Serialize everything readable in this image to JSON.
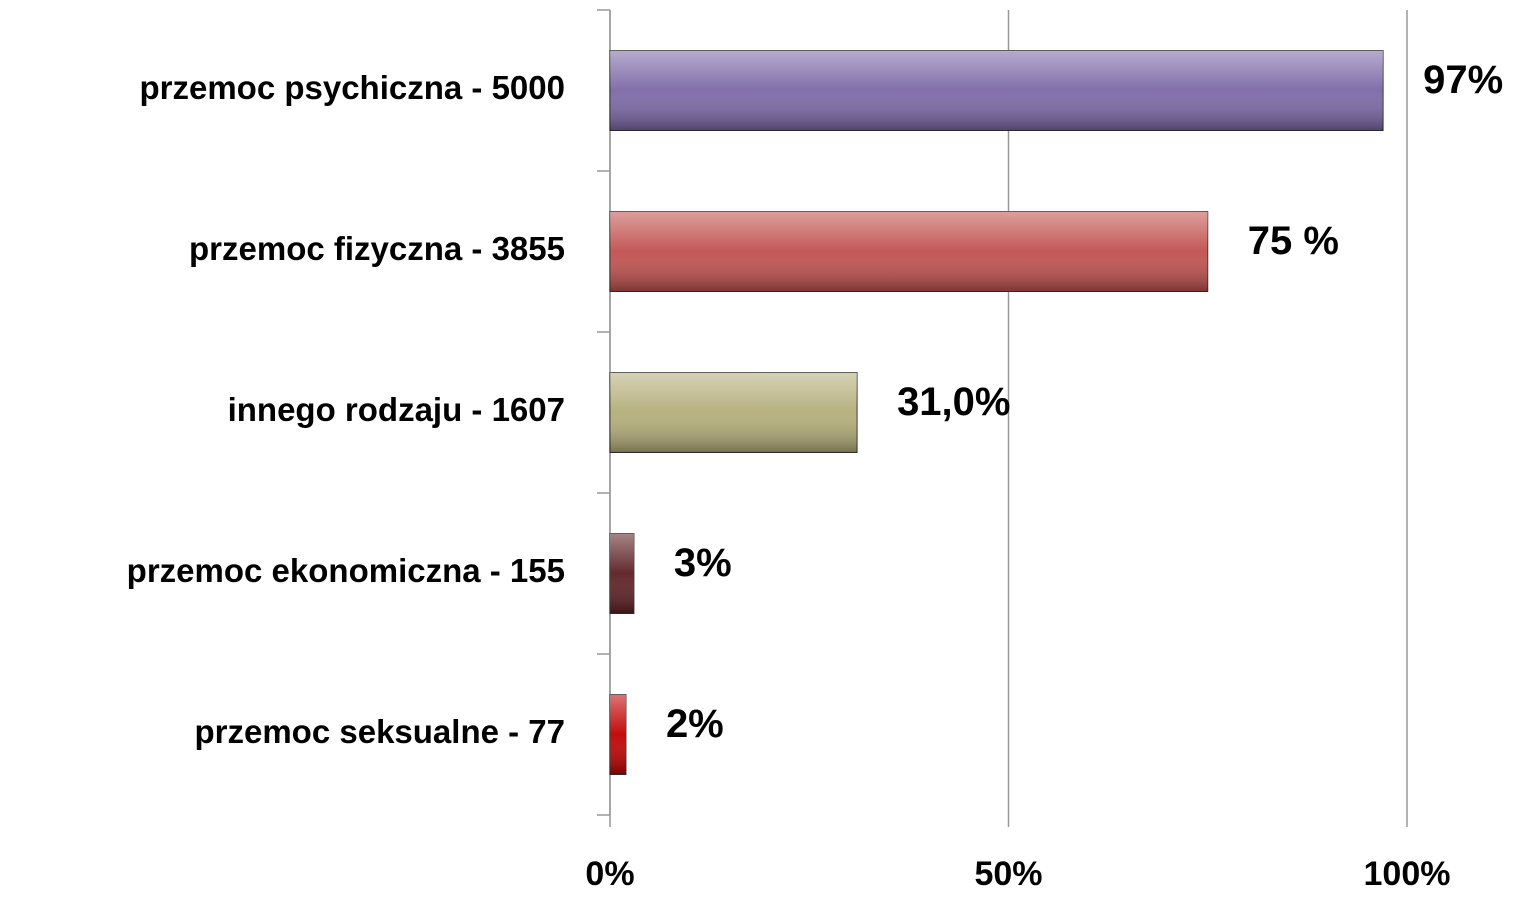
{
  "chart_data": {
    "type": "bar",
    "orientation": "horizontal",
    "categories": [
      "przemoc psychiczna - 5000",
      "przemoc fizyczna - 3855",
      "innego rodzaju - 1607",
      "przemoc ekonomiczna - 155",
      "przemoc seksualne - 77"
    ],
    "values": [
      97,
      75,
      31,
      3,
      2
    ],
    "value_labels": [
      "97%",
      "75 %",
      "31,0%",
      "3%",
      "2%"
    ],
    "colors": [
      "#7b67a6",
      "#c0504d",
      "#b3ad78",
      "#5c1f22",
      "#c00000"
    ],
    "xlim": [
      0,
      100
    ],
    "xticks": [
      {
        "value": 0,
        "label": "0%"
      },
      {
        "value": 50,
        "label": "50%"
      },
      {
        "value": 100,
        "label": "100%"
      }
    ],
    "grid": true
  }
}
